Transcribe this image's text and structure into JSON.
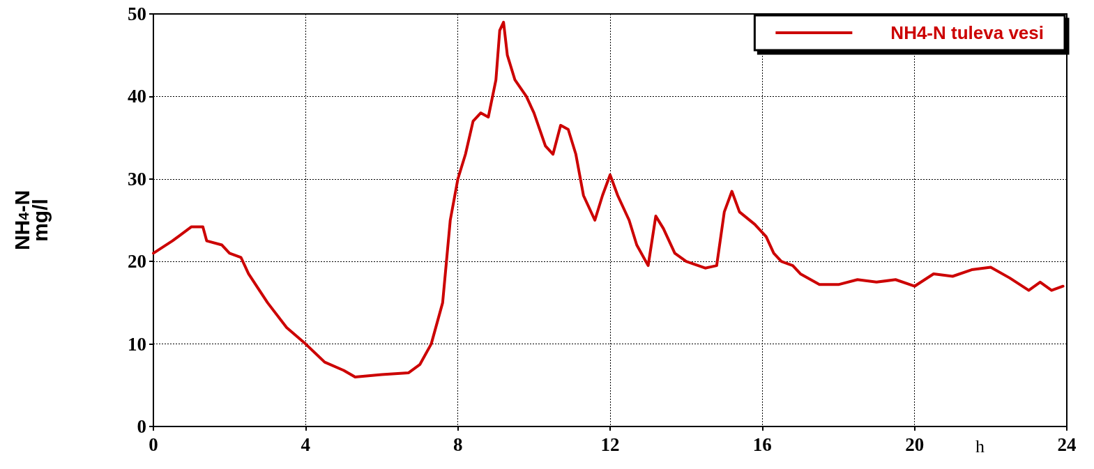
{
  "chart_data": {
    "type": "line",
    "ylabel": "NH$_{4}$-N\nmg/l",
    "xlabel": "h",
    "xlim": [
      0,
      24
    ],
    "xticks": [
      0,
      4,
      8,
      12,
      16,
      20,
      24
    ],
    "ylim": [
      0,
      50
    ],
    "yticks": [
      0,
      10,
      20,
      30,
      40,
      50
    ],
    "grid": true,
    "legend": "top right",
    "marker": "none",
    "line_style": "solid",
    "x": [
      0,
      0.5,
      1,
      1.3,
      1.4,
      1.8,
      2,
      2.3,
      2.5,
      3,
      3.5,
      4,
      4.5,
      5,
      5.3,
      6,
      6.7,
      7,
      7.3,
      7.6,
      7.7,
      7.8,
      8,
      8.2,
      8.4,
      8.6,
      8.8,
      9,
      9.1,
      9.2,
      9.3,
      9.5,
      9.8,
      10,
      10.3,
      10.5,
      10.7,
      10.9,
      11.1,
      11.3,
      11.6,
      11.8,
      12,
      12.2,
      12.5,
      12.7,
      13,
      13.2,
      13.4,
      13.7,
      14,
      14.5,
      14.8,
      15,
      15.2,
      15.4,
      15.8,
      16.1,
      16.3,
      16.5,
      16.8,
      17,
      17.5,
      18,
      18.5,
      19,
      19.5,
      20,
      20.5,
      21,
      21.5,
      22,
      22.5,
      23,
      23.3,
      23.6,
      23.9
    ],
    "series": [
      {
        "name": "NH4-N tuleva vesi",
        "color": "#cc0000",
        "values": [
          21,
          22.5,
          24.2,
          24.2,
          22.5,
          22,
          21,
          20.5,
          18.5,
          15,
          12,
          10,
          7.8,
          6.8,
          6,
          6.3,
          6.5,
          7.5,
          10,
          15,
          20,
          25,
          30,
          33,
          37,
          38,
          37.5,
          42,
          48,
          49,
          45,
          42,
          40,
          38,
          34,
          33,
          36.5,
          36,
          33,
          28,
          25,
          28,
          30.5,
          28,
          25,
          22,
          19.5,
          25.5,
          24,
          21,
          20,
          19.2,
          19.5,
          26,
          28.5,
          26,
          24.5,
          23,
          21,
          20,
          19.5,
          18.5,
          17.2,
          17.2,
          17.8,
          17.5,
          17.8,
          17,
          18.5,
          18.2,
          19,
          19.3,
          18,
          16.5,
          17.5,
          16.5,
          17
        ]
      }
    ]
  }
}
